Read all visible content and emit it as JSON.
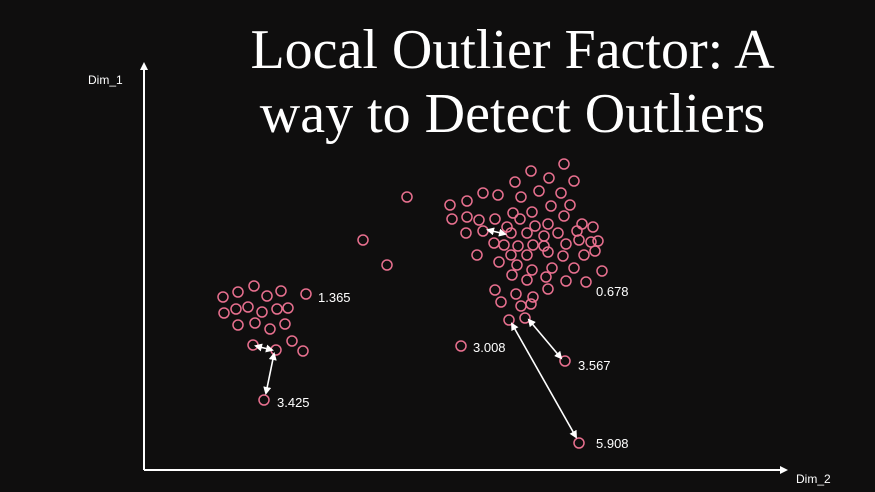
{
  "title": {
    "line1": "Local Outlier Factor: A",
    "line2": "way to Detect Outliers"
  },
  "axes": {
    "y_label": "Dim_1",
    "x_label": "Dim_2"
  },
  "lof_scores": {
    "a": "1.365",
    "b": "3.425",
    "c": "3.008",
    "d": "0.678",
    "e": "3.567",
    "f": "5.908"
  },
  "colors": {
    "background": "#0f0e0e",
    "point": "#e8708f",
    "axis": "#ffffff",
    "text": "#ffffff"
  }
}
